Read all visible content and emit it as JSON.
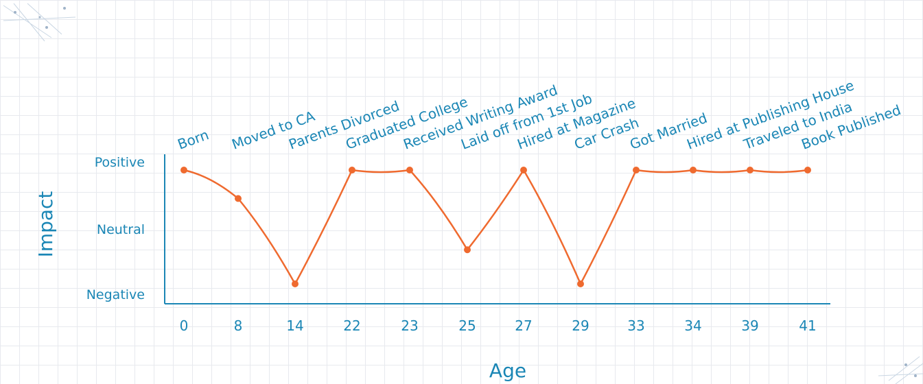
{
  "chart_data": {
    "type": "line",
    "xlabel": "Age",
    "ylabel": "Impact",
    "y_levels": [
      "Negative",
      "Neutral",
      "Positive"
    ],
    "categories": [
      "0",
      "8",
      "14",
      "22",
      "23",
      "25",
      "27",
      "29",
      "33",
      "34",
      "39",
      "41"
    ],
    "events": [
      "Born",
      "Moved to CA",
      "Parents Divorced",
      "Graduated College",
      "Received Writing Award",
      "Laid off from 1st Job",
      "Hired at Magazine",
      "Car Crash",
      "Got Married",
      "Hired at Publishing House",
      "Traveled to India",
      "Book Published"
    ],
    "values": [
      1,
      0.5,
      -1,
      1,
      1,
      -0.4,
      1,
      -1,
      1,
      1,
      1,
      1
    ],
    "grid": true,
    "colors": {
      "line": "#ef6a2f",
      "text": "#1a86b5",
      "grid": "#e7e9ee"
    }
  }
}
